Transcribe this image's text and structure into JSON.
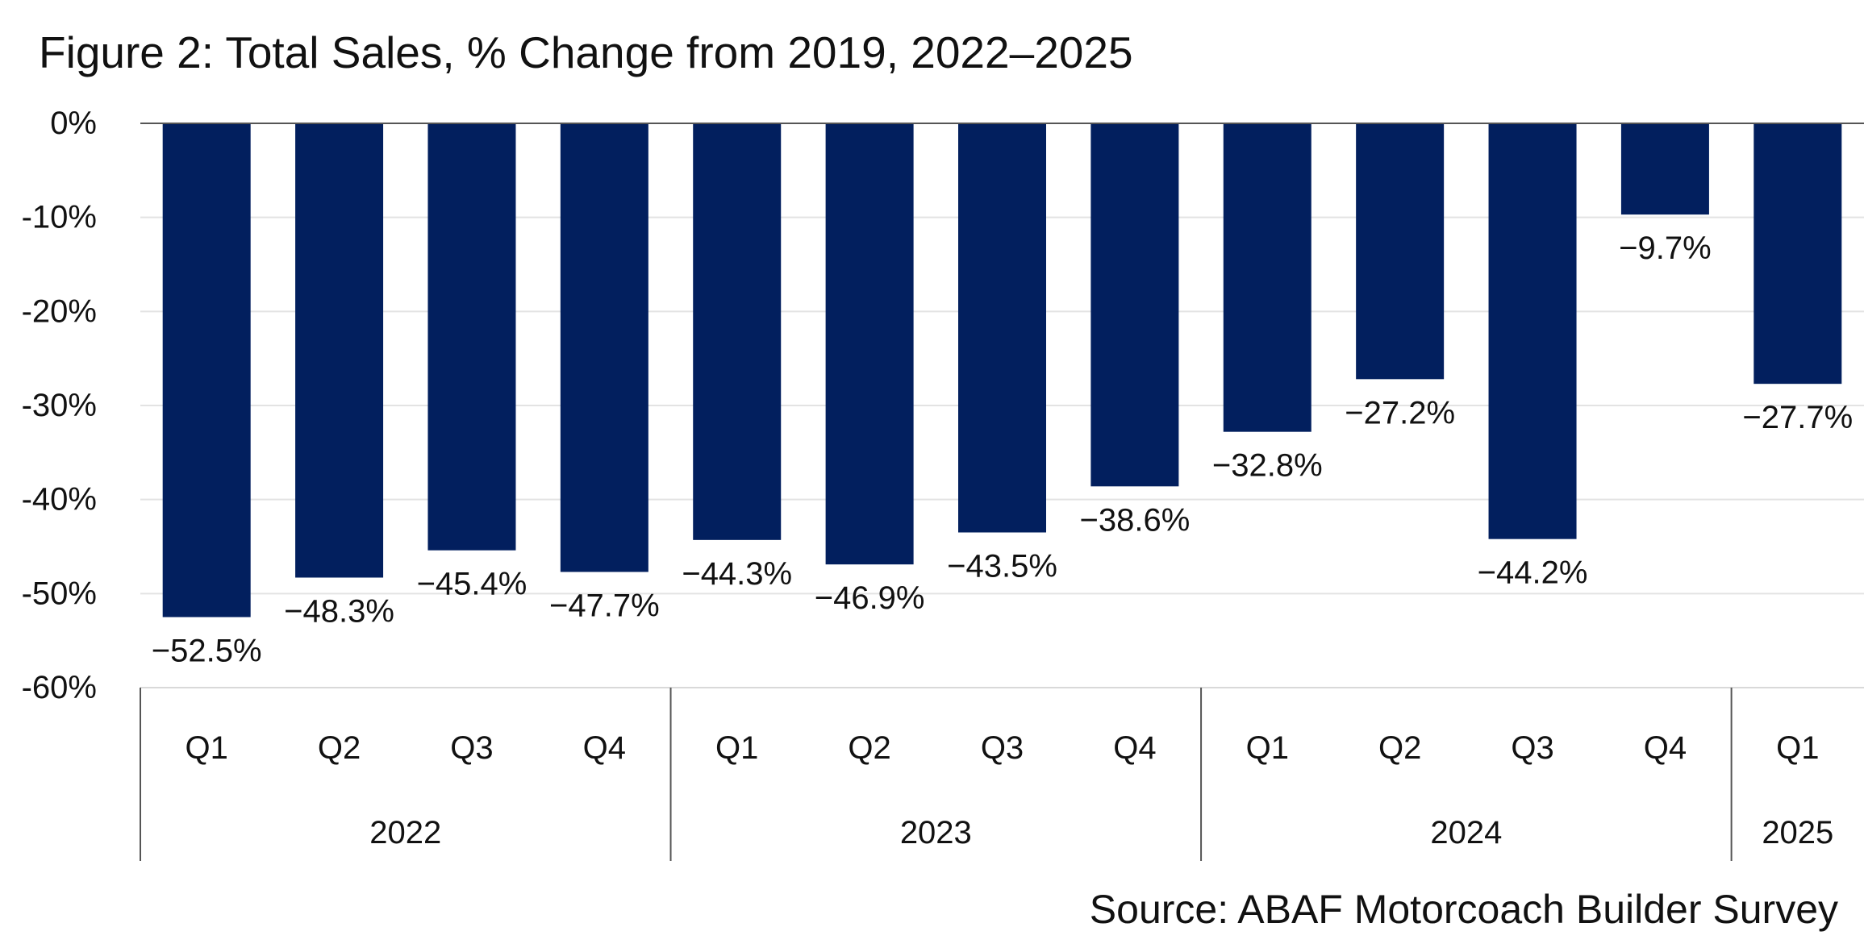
{
  "chart_data": {
    "type": "bar",
    "title": "Figure 2: Total Sales, % Change from 2019, 2022–2025",
    "source": "Source: ABAF Motorcoach Builder Survey",
    "xlabel": "",
    "ylabel": "",
    "ylim": [
      -60,
      0
    ],
    "yticks": [
      0,
      -10,
      -20,
      -30,
      -40,
      -50,
      -60
    ],
    "ytick_labels": [
      "0%",
      "-10%",
      "-20%",
      "-30%",
      "-40%",
      "-50%",
      "-60%"
    ],
    "grid": true,
    "legend": "none",
    "bar_color": "#021f5e",
    "categories": [
      "Q1",
      "Q2",
      "Q3",
      "Q4",
      "Q1",
      "Q2",
      "Q3",
      "Q4",
      "Q1",
      "Q2",
      "Q3",
      "Q4",
      "Q1"
    ],
    "groups": [
      {
        "name": "2022",
        "count": 4
      },
      {
        "name": "2023",
        "count": 4
      },
      {
        "name": "2024",
        "count": 4
      },
      {
        "name": "2025",
        "count": 1
      }
    ],
    "values": [
      -52.5,
      -48.3,
      -45.4,
      -47.7,
      -44.3,
      -46.9,
      -43.5,
      -38.6,
      -32.8,
      -27.2,
      -44.2,
      -9.7,
      -27.7
    ],
    "data_labels": [
      "−52.5%",
      "−48.3%",
      "−45.4%",
      "−47.7%",
      "−44.3%",
      "−46.9%",
      "−43.5%",
      "−38.6%",
      "−32.8%",
      "−27.2%",
      "−44.2%",
      "−9.7%",
      "−27.7%"
    ]
  }
}
